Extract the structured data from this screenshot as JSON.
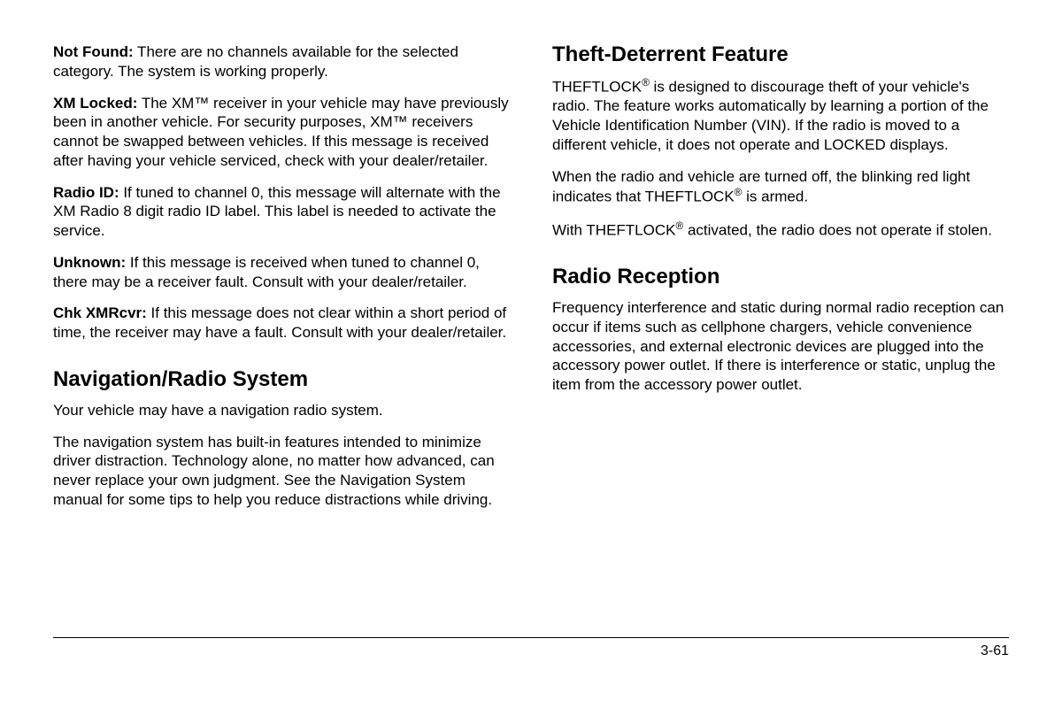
{
  "left": {
    "entries": [
      {
        "label": "Not Found:",
        "text": " There are no channels available for the selected category. The system is working properly."
      },
      {
        "label": "XM Locked:",
        "text": " The XM™ receiver in your vehicle may have previously been in another vehicle. For security purposes, XM™ receivers cannot be swapped between vehicles. If this message is received after having your vehicle serviced, check with your dealer/retailer."
      },
      {
        "label": "Radio ID:",
        "text": " If tuned to channel 0, this message will alternate with the XM Radio 8 digit radio ID label. This label is needed to activate the service."
      },
      {
        "label": "Unknown:",
        "text": " If this message is received when tuned to channel 0, there may be a receiver fault. Consult with your dealer/retailer."
      },
      {
        "label": "Chk XMRcvr:",
        "text": " If this message does not clear within a short period of time, the receiver may have a fault. Consult with your dealer/retailer."
      }
    ],
    "heading1": "Navigation/Radio System",
    "nav_p1": "Your vehicle may have a navigation radio system.",
    "nav_p2": "The navigation system has built-in features intended to minimize driver distraction. Technology alone, no matter how advanced, can never replace your own judgment. See the Navigation System manual for some tips to help you reduce distractions while driving."
  },
  "right": {
    "heading1": "Theft-Deterrent Feature",
    "theft_p1_a": "THEFTLOCK",
    "theft_p1_b": " is designed to discourage theft of your vehicle's radio. The feature works automatically by learning a portion of the Vehicle Identification Number (VIN). If the radio is moved to a different vehicle, it does not operate and LOCKED displays.",
    "theft_p2_a": "When the radio and vehicle are turned off, the blinking red light indicates that THEFTLOCK",
    "theft_p2_b": " is armed.",
    "theft_p3_a": "With THEFTLOCK",
    "theft_p3_b": " activated, the radio does not operate if stolen.",
    "reg": "®",
    "heading2": "Radio Reception",
    "radio_p1": "Frequency interference and static during normal radio reception can occur if items such as cellphone chargers, vehicle convenience accessories, and external electronic devices are plugged into the accessory power outlet. If there is interference or static, unplug the item from the accessory power outlet."
  },
  "page_number": "3-61"
}
